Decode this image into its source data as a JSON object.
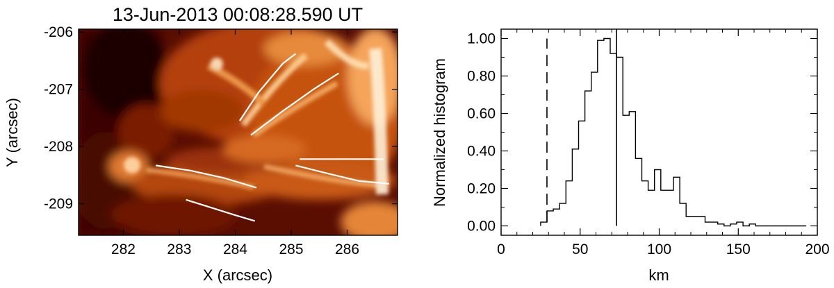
{
  "chart_data": [
    {
      "type": "heatmap",
      "title": "13-Jun-2013 00:08:28.590 UT",
      "xlabel": "X (arcsec)",
      "ylabel": "Y (arcsec)",
      "xlim": [
        281.2,
        286.9
      ],
      "ylim": [
        -209.55,
        -205.95
      ],
      "xticks": [
        282,
        283,
        284,
        285,
        286
      ],
      "yticks": [
        -206,
        -207,
        -208,
        -209
      ],
      "colormap": [
        "#2a0000",
        "#7a1500",
        "#c8520a",
        "#f5a860",
        "#fff2dc"
      ],
      "traced_lines": [
        {
          "name": "",
          "points": [
            [
              284.08,
              -207.55
            ],
            [
              284.42,
              -207.05
            ],
            [
              284.85,
              -206.55
            ],
            [
              285.08,
              -206.38
            ]
          ]
        },
        {
          "name": "",
          "points": [
            [
              284.28,
              -207.8
            ],
            [
              284.85,
              -207.38
            ],
            [
              285.4,
              -207.0
            ],
            [
              285.85,
              -206.72
            ]
          ]
        },
        {
          "name": "",
          "points": [
            [
              282.58,
              -208.33
            ],
            [
              283.2,
              -208.42
            ],
            [
              283.8,
              -208.55
            ],
            [
              284.38,
              -208.72
            ]
          ]
        },
        {
          "name": "",
          "points": [
            [
              283.12,
              -208.93
            ],
            [
              283.58,
              -209.07
            ],
            [
              284.0,
              -209.2
            ],
            [
              284.35,
              -209.3
            ]
          ]
        },
        {
          "name": "",
          "points": [
            [
              285.08,
              -208.33
            ],
            [
              285.65,
              -208.47
            ],
            [
              286.2,
              -208.6
            ],
            [
              286.75,
              -208.65
            ]
          ]
        },
        {
          "name": "",
          "points": [
            [
              285.15,
              -208.22
            ],
            [
              285.75,
              -208.22
            ],
            [
              286.25,
              -208.22
            ],
            [
              286.65,
              -208.22
            ]
          ]
        }
      ]
    },
    {
      "type": "line",
      "style": "step",
      "title": "",
      "xlabel": "km",
      "ylabel": "Normalized histogram",
      "xlim": [
        0,
        200
      ],
      "ylim": [
        -0.05,
        1.05
      ],
      "xticks": [
        0,
        50,
        100,
        150,
        200
      ],
      "yticks": [
        "0.00",
        "0.20",
        "0.40",
        "0.60",
        "0.80",
        "1.00"
      ],
      "bin_edges": [
        25,
        29,
        33,
        37,
        41,
        45,
        49,
        53,
        57,
        61,
        65,
        69,
        73,
        77,
        81,
        85,
        89,
        93,
        97,
        101,
        105,
        109,
        113,
        117,
        121,
        125,
        129,
        133,
        137,
        141,
        145,
        149,
        153,
        157,
        161,
        165,
        169,
        173,
        177,
        181,
        185,
        189,
        193
      ],
      "values": [
        0.02,
        0.08,
        0.09,
        0.12,
        0.24,
        0.41,
        0.56,
        0.72,
        0.82,
        0.99,
        1.0,
        0.92,
        0.9,
        0.59,
        0.61,
        0.36,
        0.24,
        0.19,
        0.3,
        0.19,
        0.19,
        0.26,
        0.12,
        0.05,
        0.05,
        0.05,
        0.02,
        0.02,
        0.01,
        0.0,
        0.01,
        0.02,
        0.0,
        0.01,
        0.0,
        0.0,
        0.0,
        0.0,
        0.0,
        0.0,
        0.0,
        0.0
      ],
      "vlines": [
        {
          "x": 29,
          "style": "dashed"
        },
        {
          "x": 73,
          "style": "solid"
        }
      ]
    }
  ]
}
